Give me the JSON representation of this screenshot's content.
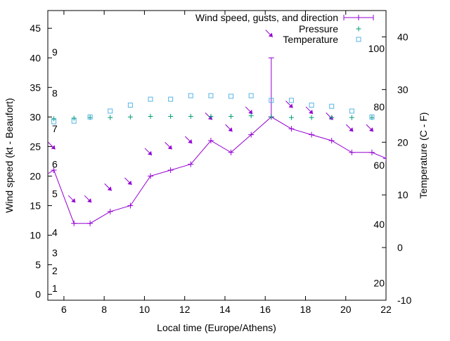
{
  "chart_data": {
    "type": "line",
    "xlabel": "Local time (Europe/Athens)",
    "ylabel": "Wind speed (kt - Beaufort)",
    "y2label": "Temperature (C - F)",
    "xlim": [
      5.2,
      22
    ],
    "ylim": [
      -1,
      48
    ],
    "y2lim": [
      -10,
      45
    ],
    "x_ticks": [
      "6",
      "8",
      "10",
      "12",
      "14",
      "16",
      "18",
      "20",
      "22"
    ],
    "y_ticks": [
      "0",
      "5",
      "10",
      "15",
      "20",
      "25",
      "30",
      "35",
      "40",
      "45"
    ],
    "y2_ticks": [
      "-10",
      "0",
      "10",
      "20",
      "30",
      "40"
    ],
    "beaufort_labels": [
      "1",
      "2",
      "3",
      "4",
      "5",
      "6",
      "7",
      "8",
      "9"
    ],
    "beaufort_positions_kt": [
      1,
      4,
      7,
      10.5,
      17,
      22,
      28,
      34,
      41
    ],
    "fahrenheit_labels": [
      "20",
      "40",
      "60",
      "80",
      "100"
    ],
    "fahrenheit_positions_c": [
      -6.7,
      4.4,
      15.6,
      26.7,
      37.8
    ],
    "legend": {
      "position": "top-right",
      "entries": [
        "Wind speed, gusts, and direction",
        "Pressure",
        "Temperature"
      ]
    },
    "colors": {
      "wind": "#9400d3",
      "pressure": "#009e73",
      "temperature": "#56b4e9"
    },
    "series": [
      {
        "name": "Wind speed, gusts, and direction",
        "x": [
          5.0,
          5.5,
          6.5,
          7.3,
          8.3,
          9.3,
          10.3,
          11.3,
          12.3,
          13.3,
          14.3,
          15.3,
          16.3,
          17.3,
          18.3,
          19.3,
          20.3,
          21.3,
          22.0
        ],
        "y": [
          20,
          21,
          12,
          12,
          14,
          15,
          20,
          21,
          22,
          26,
          24,
          27,
          30,
          28,
          27,
          26,
          24,
          24,
          23
        ],
        "gust_x": 16.3,
        "gust_y": 40
      },
      {
        "name": "Pressure",
        "x": [
          5.5,
          6.5,
          7.3,
          8.3,
          9.3,
          10.3,
          11.3,
          12.3,
          13.3,
          14.3,
          15.3,
          16.3,
          17.3,
          18.3,
          19.3,
          20.3,
          21.3
        ],
        "y": [
          29.7,
          29.8,
          29.9,
          29.9,
          30.0,
          30.1,
          30.1,
          30.1,
          30.1,
          30.1,
          30.2,
          30.0,
          29.9,
          29.9,
          29.9,
          29.9,
          29.9
        ]
      },
      {
        "name": "Temperature",
        "x": [
          5.5,
          6.5,
          7.3,
          8.3,
          9.3,
          10.3,
          11.3,
          12.3,
          13.3,
          14.3,
          15.3,
          16.3,
          17.3,
          18.3,
          19.3,
          20.3,
          21.3
        ],
        "y": [
          29.2,
          29.3,
          30.0,
          31.0,
          32.0,
          33.0,
          33.0,
          33.6,
          33.6,
          33.5,
          33.6,
          32.8,
          32.8,
          32.0,
          31.8,
          31.0,
          30.0
        ]
      }
    ],
    "wind_arrows": {
      "x": [
        5.5,
        6.5,
        7.3,
        8.3,
        9.3,
        10.3,
        11.3,
        12.3,
        13.3,
        14.3,
        15.3,
        16.3,
        17.3,
        18.3,
        19.3,
        20.3,
        21.3
      ],
      "y": [
        25,
        16,
        16,
        18,
        19,
        24,
        25,
        26,
        30,
        28,
        31,
        44,
        32,
        31,
        30,
        28,
        28
      ],
      "direction": "from north-west"
    }
  }
}
